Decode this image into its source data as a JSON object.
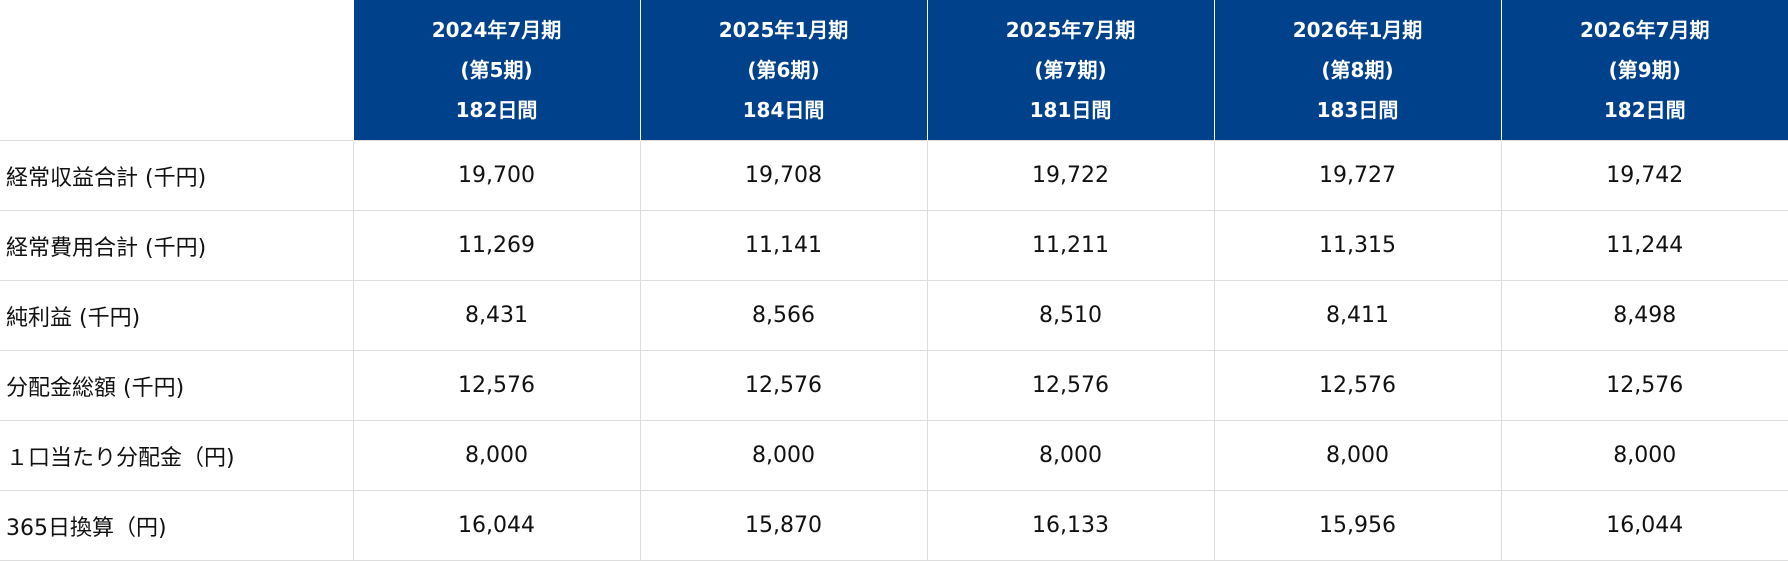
{
  "header": {
    "columns": [
      {
        "period": "2024年7月期",
        "term": "(第5期)",
        "days": "182日間"
      },
      {
        "period": "2025年1月期",
        "term": "(第6期)",
        "days": "184日間"
      },
      {
        "period": "2025年7月期",
        "term": "(第7期)",
        "days": "181日間"
      },
      {
        "period": "2026年1月期",
        "term": "(第8期)",
        "days": "183日間"
      },
      {
        "period": "2026年7月期",
        "term": "(第9期)",
        "days": "182日間"
      }
    ]
  },
  "table": {
    "rows": [
      {
        "label": "経常収益合計 (千円)",
        "values": [
          "19,700",
          "19,708",
          "19,722",
          "19,727",
          "19,742"
        ]
      },
      {
        "label": "経常費用合計 (千円)",
        "values": [
          "11,269",
          "11,141",
          "11,211",
          "11,315",
          "11,244"
        ]
      },
      {
        "label": "純利益 (千円)",
        "values": [
          "8,431",
          "8,566",
          "8,510",
          "8,411",
          "8,498"
        ]
      },
      {
        "label": "分配金総額 (千円)",
        "values": [
          "12,576",
          "12,576",
          "12,576",
          "12,576",
          "12,576"
        ]
      },
      {
        "label": "１口当たり分配金（円)",
        "values": [
          "8,000",
          "8,000",
          "8,000",
          "8,000",
          "8,000"
        ]
      },
      {
        "label": "365日換算（円)",
        "values": [
          "16,044",
          "15,870",
          "16,133",
          "15,956",
          "16,044"
        ]
      }
    ]
  }
}
